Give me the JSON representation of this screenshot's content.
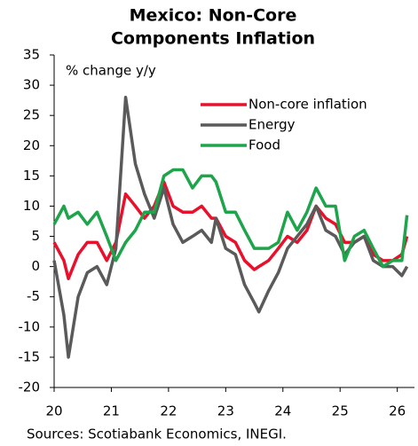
{
  "chart_data": {
    "type": "line",
    "title": [
      "Mexico: Non-Core",
      "Components Inflation"
    ],
    "y_label": "% change y/y",
    "source": "Sources: Scotiabank Economics, INEGI.",
    "x": [
      20,
      20.17,
      20.25,
      20.42,
      20.58,
      20.75,
      20.92,
      21.08,
      21.25,
      21.42,
      21.58,
      21.75,
      21.92,
      22.08,
      22.25,
      22.42,
      22.58,
      22.75,
      22.83,
      23,
      23.17,
      23.33,
      23.5,
      23.58,
      23.75,
      23.92,
      24.08,
      24.25,
      24.42,
      24.58,
      24.75,
      24.92,
      25.08,
      25.25,
      25.42,
      25.58,
      25.75,
      25.92,
      26.08,
      26.17
    ],
    "series": [
      {
        "name": "Non-core inflation",
        "color": "#e8102b",
        "values": [
          4,
          1,
          -2,
          2,
          4,
          4,
          1,
          4,
          12,
          10,
          8,
          10,
          14,
          10,
          9,
          9,
          10,
          8,
          8,
          5,
          4,
          1,
          -0.5,
          0,
          1,
          3,
          5,
          4,
          6,
          10,
          8,
          7,
          4,
          4,
          5,
          2,
          1,
          1,
          2,
          5
        ]
      },
      {
        "name": "Energy",
        "color": "#5a5a5a",
        "values": [
          1,
          -8,
          -15,
          -5,
          -1,
          0,
          -3,
          3,
          28,
          17,
          12,
          8,
          13,
          7,
          4,
          5,
          6,
          4,
          8,
          3,
          2,
          -3,
          -6,
          -7.5,
          -4,
          -1,
          3,
          5,
          7,
          10,
          6,
          5,
          2,
          4,
          5,
          1,
          0,
          0,
          -1.5,
          0
        ]
      },
      {
        "name": "Food",
        "color": "#1ea44b",
        "values": [
          7,
          10,
          8,
          9,
          7,
          9,
          5,
          1,
          4,
          6,
          9,
          9,
          15,
          16,
          16,
          13,
          15,
          15,
          14,
          9,
          9,
          6,
          3,
          3,
          3,
          4,
          9,
          6,
          9,
          13,
          10,
          10,
          1,
          5,
          6,
          3,
          0,
          1,
          1,
          8.5
        ]
      }
    ],
    "xlim": [
      20,
      26.3
    ],
    "xticks": [
      20,
      21,
      22,
      23,
      24,
      25,
      26
    ],
    "ylim": [
      -20,
      35
    ],
    "yticks": [
      -20,
      -15,
      -10,
      -5,
      0,
      5,
      10,
      15,
      20,
      25,
      30,
      35
    ],
    "grid": false
  }
}
